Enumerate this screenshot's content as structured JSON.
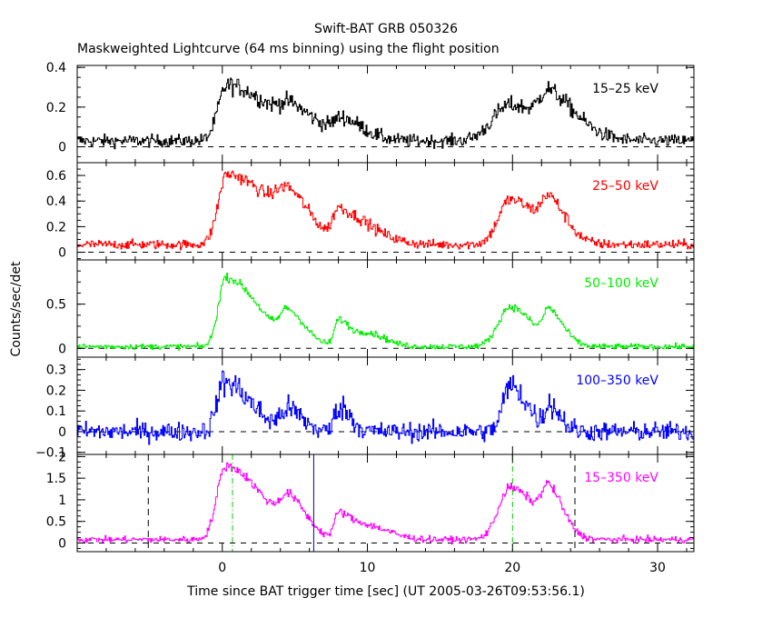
{
  "header": {
    "title": "Swift-BAT GRB 050326",
    "subtitle": "Maskweighted Lightcurve (64 ms binning) using the flight position"
  },
  "chart_data": {
    "type": "line",
    "title": "Swift-BAT GRB 050326",
    "subtitle": "Maskweighted Lightcurve (64 ms binning) using the flight position",
    "xlabel": "Time since BAT trigger time [sec] (UT 2005-03-26T09:53:56.1)",
    "ylabel": "Counts/sec/det",
    "xlim": [
      -10,
      32.5
    ],
    "x_ticks": [
      0,
      10,
      20,
      30
    ],
    "x_tick_labels": [
      "0",
      "10",
      "20",
      "30"
    ],
    "grid": false,
    "panels": [
      {
        "name": "15-25 keV",
        "label": "15–25 keV",
        "color": "#000000",
        "ylim": [
          -0.08,
          0.41
        ],
        "y_ticks": [
          0,
          0.2,
          0.4
        ],
        "y_tick_labels": [
          "0",
          "0.2",
          "0.4"
        ],
        "baseline": 0.03,
        "noise": 0.03,
        "pulses": [
          [
            0.3,
            0.28,
            0.6,
            3.0
          ],
          [
            4.8,
            0.1,
            0.8,
            2.0
          ],
          [
            8.3,
            0.09,
            0.6,
            1.5
          ],
          [
            19.8,
            0.18,
            1.2,
            2.5
          ],
          [
            22.5,
            0.16,
            0.6,
            2.0
          ]
        ]
      },
      {
        "name": "25-50 keV",
        "label": "25–50 keV",
        "color": "#ff0000",
        "ylim": [
          -0.06,
          0.7
        ],
        "y_ticks": [
          0,
          0.2,
          0.4,
          0.6
        ],
        "y_tick_labels": [
          "0",
          "0.2",
          "0.4",
          "0.6"
        ],
        "baseline": 0.06,
        "noise": 0.035,
        "pulses": [
          [
            0.3,
            0.55,
            0.6,
            3.0
          ],
          [
            4.6,
            0.25,
            0.8,
            1.5
          ],
          [
            8.0,
            0.25,
            0.4,
            1.2
          ],
          [
            10.0,
            0.1,
            0.8,
            1.5
          ],
          [
            19.8,
            0.35,
            0.8,
            2.0
          ],
          [
            22.5,
            0.25,
            0.5,
            1.2
          ]
        ]
      },
      {
        "name": "50-100 keV",
        "label": "50–100 keV",
        "color": "#00ee00",
        "ylim": [
          -0.1,
          1.0
        ],
        "y_ticks": [
          0,
          0.5
        ],
        "y_tick_labels": [
          "0",
          "0.5"
        ],
        "baseline": 0.02,
        "noise": 0.03,
        "pulses": [
          [
            0.2,
            0.78,
            0.5,
            2.2
          ],
          [
            4.5,
            0.32,
            0.5,
            1.2
          ],
          [
            8.0,
            0.3,
            0.3,
            0.8
          ],
          [
            10.0,
            0.15,
            0.7,
            1.2
          ],
          [
            19.8,
            0.45,
            0.8,
            1.5
          ],
          [
            22.5,
            0.35,
            0.4,
            1.0
          ]
        ]
      },
      {
        "name": "100-350 keV",
        "label": "100–350 keV",
        "color": "#0000ff",
        "ylim": [
          -0.11,
          0.36
        ],
        "y_ticks": [
          -0.1,
          0,
          0.1,
          0.2,
          0.3
        ],
        "y_tick_labels": [
          "−0.1",
          "0",
          "0.1",
          "0.2",
          "0.3"
        ],
        "baseline": 0.0,
        "noise": 0.045,
        "pulses": [
          [
            0.1,
            0.24,
            0.5,
            1.8
          ],
          [
            4.5,
            0.1,
            0.5,
            1.0
          ],
          [
            8.0,
            0.12,
            0.3,
            0.8
          ],
          [
            19.8,
            0.22,
            0.5,
            1.2
          ],
          [
            22.5,
            0.12,
            0.3,
            0.8
          ]
        ]
      },
      {
        "name": "15-350 keV",
        "label": "15–350 keV",
        "color": "#ff00ff",
        "ylim": [
          -0.2,
          2.05
        ],
        "y_ticks": [
          0,
          0.5,
          1,
          1.5,
          2
        ],
        "y_tick_labels": [
          "0",
          "0.5",
          "1",
          "1.5",
          "2"
        ],
        "baseline": 0.08,
        "noise": 0.07,
        "pulses": [
          [
            0.2,
            1.7,
            0.6,
            2.5
          ],
          [
            4.6,
            0.7,
            0.6,
            1.2
          ],
          [
            8.0,
            0.6,
            0.3,
            0.9
          ],
          [
            10.0,
            0.3,
            0.8,
            1.5
          ],
          [
            19.8,
            1.2,
            0.8,
            1.8
          ],
          [
            22.5,
            0.9,
            0.5,
            1.0
          ]
        ],
        "vlines": [
          {
            "x": -5.1,
            "color": "#000000",
            "style": "dash"
          },
          {
            "x": 0.7,
            "color": "#00cc00",
            "style": "dashdot"
          },
          {
            "x": 6.3,
            "color": "#0000aa",
            "style": "solid"
          },
          {
            "x": 20.0,
            "color": "#00cc00",
            "style": "dashdot"
          },
          {
            "x": 24.3,
            "color": "#000000",
            "style": "dash"
          }
        ]
      }
    ]
  }
}
